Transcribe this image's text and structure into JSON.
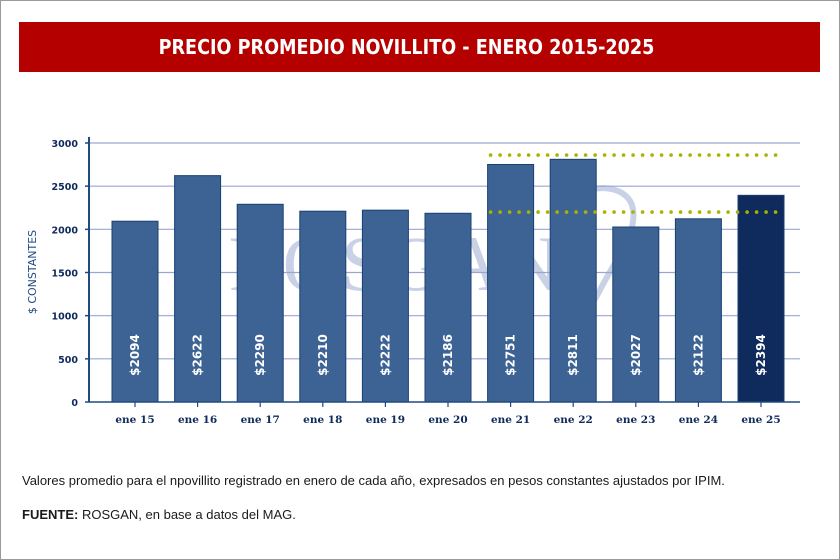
{
  "title": "PRECIO PROMEDIO NOVILLITO - ENERO 2015-2025",
  "watermark": "ROSGAN",
  "note": "Valores promedio para el npovillito registrado en enero de cada año, expresados en pesos constantes ajustados por IPIM.",
  "source": {
    "label": "FUENTE:",
    "text": " ROSGAN, en base a datos del MAG."
  },
  "colors": {
    "title_bg": "#b50000",
    "bar": "#3d6394",
    "bar_highlight": "#0f2a5c",
    "grid": "#9aa6d0",
    "axis": "#1f4b82",
    "dotted": "#a8b400",
    "tick_text": "#0f2a5c"
  },
  "chart_data": {
    "type": "bar",
    "title": "PRECIO PROMEDIO NOVILLITO - ENERO 2015-2025",
    "xlabel": "",
    "ylabel": "$ CONSTANTES",
    "ylim": [
      0,
      3000
    ],
    "yticks": [
      0,
      500,
      1000,
      1500,
      2000,
      2500,
      3000
    ],
    "grid": true,
    "categories": [
      "ene 15",
      "ene 16",
      "ene 17",
      "ene 18",
      "ene 19",
      "ene 20",
      "ene 21",
      "ene 22",
      "ene 23",
      "ene 24",
      "ene 25"
    ],
    "values": [
      2094,
      2622,
      2290,
      2210,
      2222,
      2186,
      2751,
      2811,
      2027,
      2122,
      2394
    ],
    "data_labels": [
      "$2094",
      "$2622",
      "$2290",
      "$2210",
      "$2222",
      "$2186",
      "$2751",
      "$2811",
      "$2027",
      "$2122",
      "$2394"
    ],
    "highlight_index": 10,
    "reference_lines": [
      {
        "value": 2860,
        "from_category": "ene 21",
        "to_category": "ene 25",
        "style": "dotted"
      },
      {
        "value": 2200,
        "from_category": "ene 21",
        "to_category": "ene 25",
        "style": "dotted"
      }
    ]
  }
}
